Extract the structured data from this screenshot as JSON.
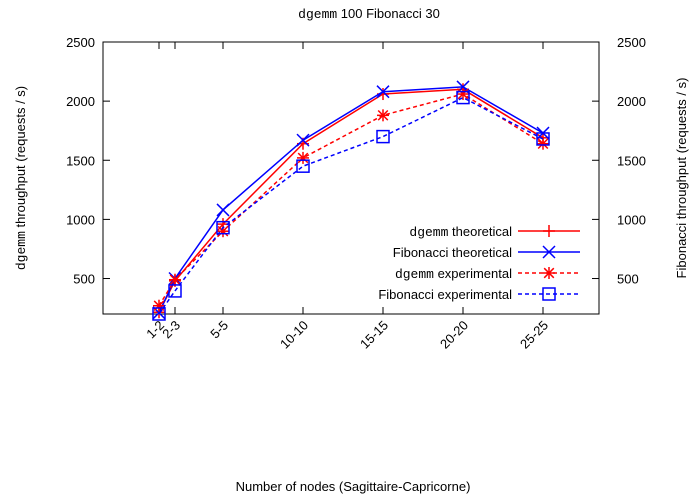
{
  "chart_data": {
    "type": "line",
    "title_mono": "dgemm",
    "title_rest": " 100 Fibonacci 30",
    "xlabel": "Number of nodes (Sagittaire-Capricorne)",
    "ylabel_left_mono": "dgemm",
    "ylabel_left_rest": " throughput (requests / s)",
    "ylabel_right": "Fibonacci throughput (requests / s)",
    "x_ticks": [
      {
        "x": 1,
        "label": "1-2"
      },
      {
        "x": 2,
        "label": "2-3"
      },
      {
        "x": 5,
        "label": "5-5"
      },
      {
        "x": 10,
        "label": "10-10"
      },
      {
        "x": 15,
        "label": "15-15"
      },
      {
        "x": 20,
        "label": "20-20"
      },
      {
        "x": 25,
        "label": "25-25"
      }
    ],
    "xlim": [
      -2.5,
      28.5
    ],
    "ylim": [
      200,
      2500
    ],
    "y_ticks": [
      500,
      1000,
      1500,
      2000,
      2500
    ],
    "legend_position": "right",
    "series": [
      {
        "name_mono": "dgemm",
        "name_rest": " theoretical",
        "color": "#ff0000",
        "dash": "solid",
        "marker": "plus",
        "x": [
          1,
          2,
          5,
          10,
          15,
          20,
          25
        ],
        "values": [
          215,
          480,
          960,
          1640,
          2060,
          2100,
          1690
        ]
      },
      {
        "name_mono": "",
        "name_rest": "Fibonacci theoretical",
        "color": "#0000ff",
        "dash": "solid",
        "marker": "x",
        "x": [
          1,
          2,
          5,
          10,
          15,
          20,
          25
        ],
        "values": [
          210,
          500,
          1080,
          1670,
          2080,
          2120,
          1730
        ]
      },
      {
        "name_mono": "dgemm",
        "name_rest": " experimental",
        "color": "#ff0000",
        "dash": "dashed",
        "marker": "star",
        "x": [
          1,
          2,
          5,
          10,
          15,
          20,
          25
        ],
        "values": [
          270,
          490,
          900,
          1520,
          1880,
          2060,
          1640
        ]
      },
      {
        "name_mono": "",
        "name_rest": "Fibonacci experimental",
        "color": "#0000ff",
        "dash": "dashed",
        "marker": "square",
        "x": [
          1,
          2,
          5,
          10,
          15,
          20,
          25
        ],
        "values": [
          200,
          395,
          930,
          1450,
          1700,
          2030,
          1680
        ]
      }
    ]
  }
}
